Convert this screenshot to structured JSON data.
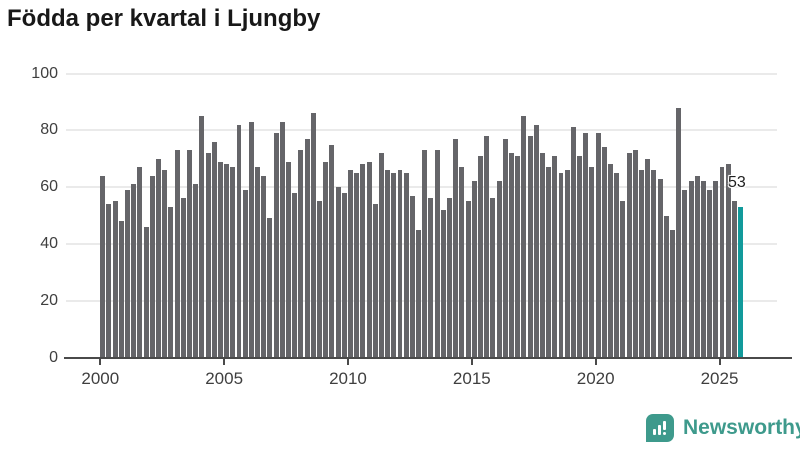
{
  "title": "Födda per kvartal i Ljungby",
  "chart_data": {
    "type": "bar",
    "title": "Födda per kvartal i Ljungby",
    "x_start": "2000-Q1",
    "x_end": "2025-Q4",
    "x_tick_labels": [
      "2000",
      "2005",
      "2010",
      "2015",
      "2020",
      "2025"
    ],
    "y_ticks": [
      0,
      20,
      40,
      60,
      80,
      100
    ],
    "ylim": [
      0,
      100
    ],
    "grid": "horizontal",
    "legend": "none",
    "series": [
      {
        "name": "Födda per kvartal",
        "values": [
          64,
          54,
          55,
          48,
          59,
          61,
          67,
          46,
          64,
          70,
          66,
          53,
          73,
          56,
          73,
          61,
          85,
          72,
          76,
          69,
          68,
          67,
          82,
          59,
          83,
          67,
          64,
          49,
          79,
          83,
          69,
          58,
          73,
          77,
          86,
          55,
          69,
          75,
          60,
          58,
          66,
          65,
          68,
          69,
          54,
          72,
          66,
          65,
          66,
          65,
          57,
          45,
          73,
          56,
          73,
          52,
          56,
          77,
          67,
          55,
          62,
          71,
          78,
          56,
          62,
          77,
          72,
          71,
          85,
          78,
          82,
          72,
          67,
          71,
          65,
          66,
          81,
          71,
          79,
          67,
          79,
          74,
          68,
          65,
          55,
          72,
          73,
          66,
          70,
          66,
          63,
          50,
          45,
          88,
          59,
          62,
          64,
          62,
          59,
          62,
          67,
          68,
          55,
          53
        ]
      }
    ],
    "highlight": {
      "index": 103,
      "quarter": "2025-Q4",
      "value": 53,
      "label": "53"
    },
    "colors": {
      "bar": "#656569",
      "highlight": "#119a9b"
    }
  },
  "logo": {
    "text": "Newsworthy",
    "color": "#3e9a8c",
    "icon": "bar-chart-speech-bubble-icon"
  }
}
